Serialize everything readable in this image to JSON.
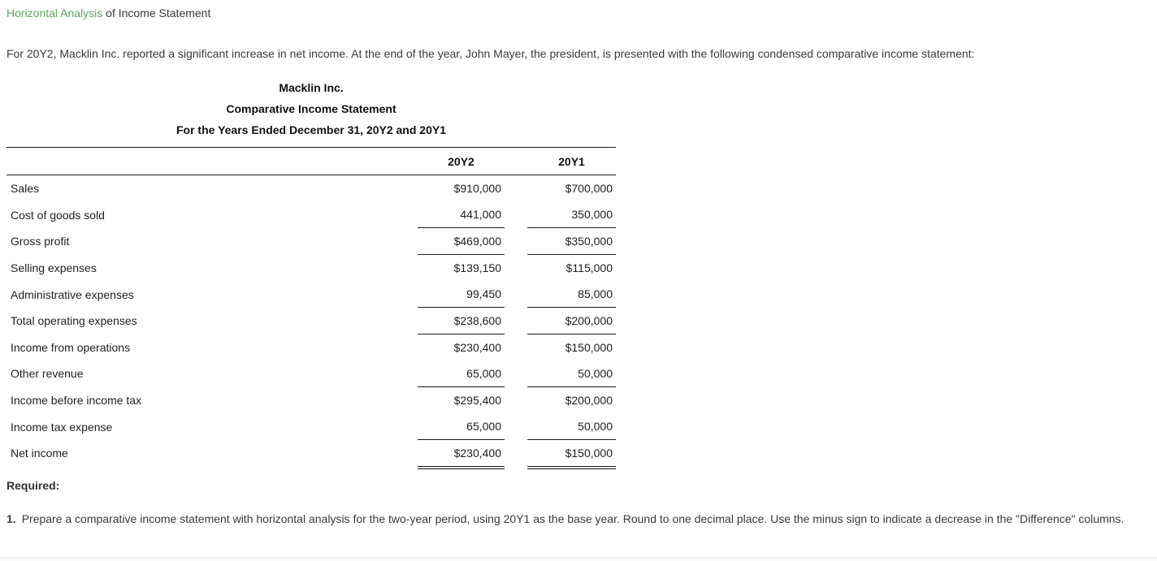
{
  "header": {
    "title_link": "Horizontal Analysis",
    "title_rest": "of Income Statement"
  },
  "intro": {
    "text": "For 20Y2, Macklin Inc. reported a significant increase in net income. At the end of the year, John Mayer, the president, is presented with the following condensed comparative income statement:"
  },
  "statement": {
    "company": "Macklin Inc.",
    "title": "Comparative Income Statement",
    "period": "For the Years Ended December 31, 20Y2 and 20Y1",
    "columns": [
      "20Y2",
      "20Y1"
    ],
    "rows": [
      {
        "label": "Sales",
        "y2": "$910,000",
        "y1": "$700,000",
        "underline": "none"
      },
      {
        "label": "Cost of goods sold",
        "y2": "441,000",
        "y1": "350,000",
        "underline": "single"
      },
      {
        "label": "Gross profit",
        "y2": "$469,000",
        "y1": "$350,000",
        "underline": "single"
      },
      {
        "label": "Selling expenses",
        "y2": "$139,150",
        "y1": "$115,000",
        "underline": "none"
      },
      {
        "label": "Administrative expenses",
        "y2": "99,450",
        "y1": "85,000",
        "underline": "single"
      },
      {
        "label": "Total operating expenses",
        "y2": "$238,600",
        "y1": "$200,000",
        "underline": "single"
      },
      {
        "label": "Income from operations",
        "y2": "$230,400",
        "y1": "$150,000",
        "underline": "none"
      },
      {
        "label": "Other revenue",
        "y2": "65,000",
        "y1": "50,000",
        "underline": "single"
      },
      {
        "label": "Income before income tax",
        "y2": "$295,400",
        "y1": "$200,000",
        "underline": "none"
      },
      {
        "label": "Income tax expense",
        "y2": "65,000",
        "y1": "50,000",
        "underline": "single"
      },
      {
        "label": "Net income",
        "y2": "$230,400",
        "y1": "$150,000",
        "underline": "double"
      }
    ]
  },
  "required": {
    "label": "Required:",
    "item1_number": "1.",
    "item1_text": "Prepare a comparative income statement with horizontal analysis for the two-year period, using 20Y1 as the base year. Round to one decimal place. Use the minus sign to indicate a decrease in the \"Difference\" columns."
  },
  "colors": {
    "link_green": "#61a261",
    "body_text": "#3a3a3a",
    "table_rule": "#1a1a1a"
  }
}
